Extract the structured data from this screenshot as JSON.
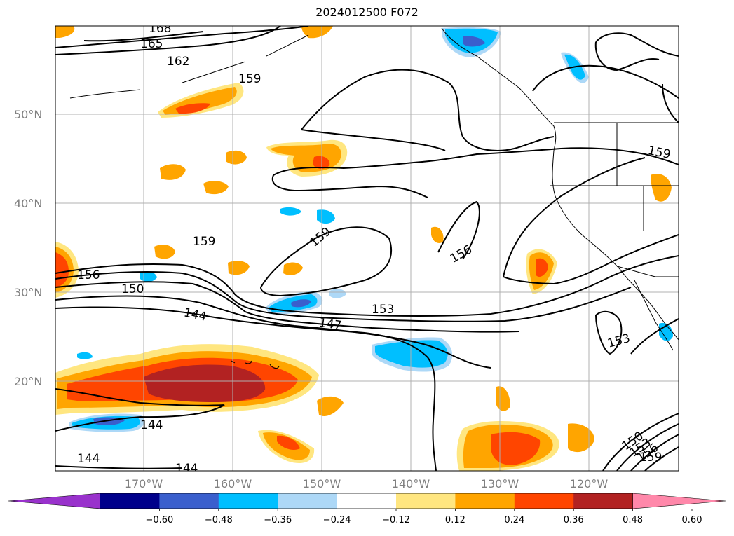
{
  "title": "2024012500 F072",
  "map": {
    "lat_labels": [
      "50°N",
      "40°N",
      "30°N",
      "20°N"
    ],
    "lon_labels": [
      "170°W",
      "160°W",
      "150°W",
      "140°W",
      "130°W",
      "120°W"
    ],
    "contour_labels": [
      "168",
      "165",
      "162",
      "159",
      "159",
      "159",
      "156",
      "150",
      "144",
      "147",
      "153",
      "159",
      "156",
      "153",
      "144",
      "144",
      "144",
      "150",
      "153",
      "156",
      "159"
    ],
    "colors": {
      "grid": "#b0b0b0",
      "contour": "#000000",
      "coast": "#000000"
    }
  },
  "colorbar": {
    "ticks": [
      "−0.60",
      "−0.48",
      "−0.36",
      "−0.24",
      "−0.12",
      "0.12",
      "0.24",
      "0.36",
      "0.48",
      "0.60"
    ],
    "colors": [
      "#9932cc",
      "#00008b",
      "#3a5fcd",
      "#00bfff",
      "#add8f7",
      "#ffffff",
      "#ffe680",
      "#ffa500",
      "#ff4500",
      "#b22222",
      "#ff88aa"
    ]
  }
}
